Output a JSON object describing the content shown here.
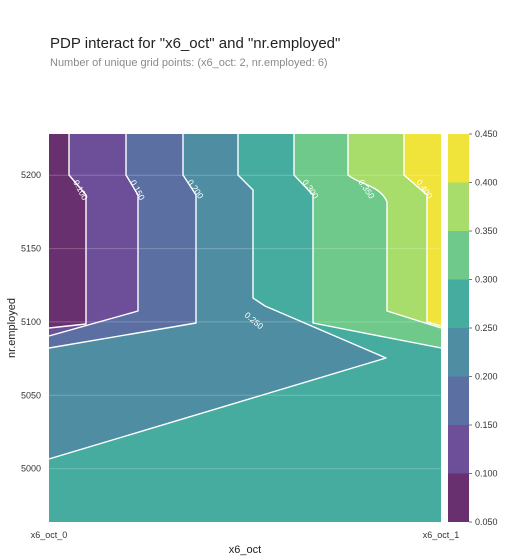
{
  "header": {
    "title": "PDP interact for \"x6_oct\" and \"nr.employed\"",
    "subtitle": "Number of unique grid points: (x6_oct: 2, nr.employed: 6)"
  },
  "chart_data": {
    "type": "heatmap",
    "title": "PDP interact for \"x6_oct\" and \"nr.employed\"",
    "subtitle": "Number of unique grid points: (x6_oct: 2, nr.employed: 6)",
    "xlabel": "x6_oct",
    "ylabel": "nr.employed",
    "x_categories": [
      "x6_oct_0",
      "x6_oct_1"
    ],
    "y_ticks": [
      5000,
      5050,
      5100,
      5150,
      5200
    ],
    "ylim": [
      4963.6,
      5228.1
    ],
    "colorbar": {
      "levels": [
        0.05,
        0.1,
        0.15,
        0.2,
        0.25,
        0.3,
        0.35,
        0.4,
        0.45
      ],
      "tick_labels": [
        "0.050",
        "0.100",
        "0.150",
        "0.200",
        "0.250",
        "0.300",
        "0.350",
        "0.400",
        "0.450"
      ],
      "colors": [
        "#69306f",
        "#6d4e98",
        "#5b6fa2",
        "#4f8ea2",
        "#46aca0",
        "#6ec98a",
        "#a8dd6c",
        "#f0e33a"
      ],
      "colormap": "viridis"
    },
    "contour_labels": [
      "0.100",
      "0.150",
      "0.200",
      "0.250",
      "0.300",
      "0.350",
      "0.400"
    ],
    "grid": true
  }
}
